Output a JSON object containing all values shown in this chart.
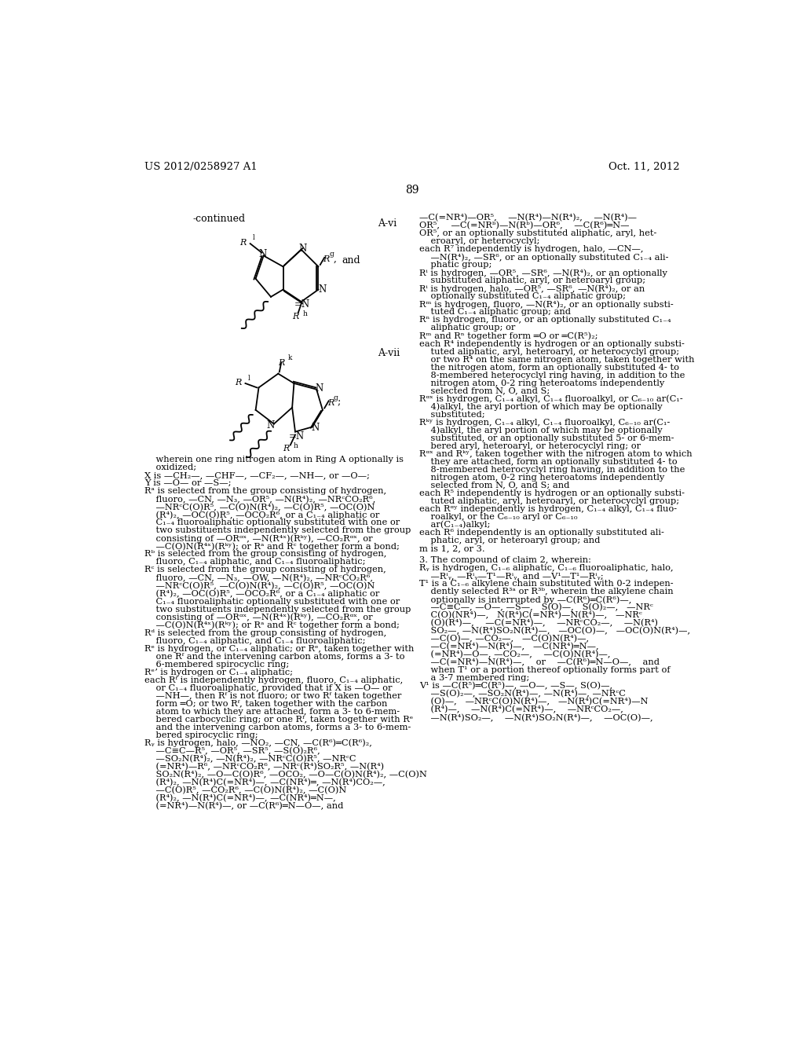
{
  "page_header_left": "US 2012/0258927 A1",
  "page_header_right": "Oct. 11, 2012",
  "page_number": "89",
  "background_color": "#ffffff",
  "text_color": "#000000"
}
